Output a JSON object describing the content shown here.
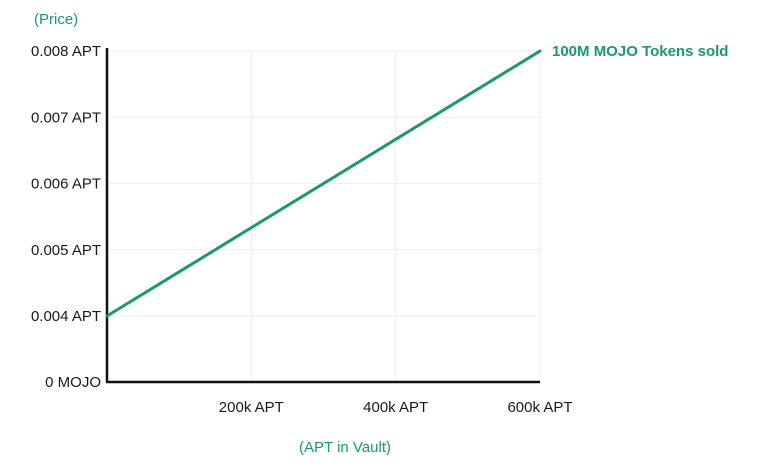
{
  "colors": {
    "accent": "#1a9a6c",
    "axis": "#111111",
    "grid": "#eeeeee",
    "text": "#1a1a1a"
  },
  "chart_data": {
    "type": "line",
    "ylabel": "(Price)",
    "xlabel": "(APT in Vault)",
    "y_ticks": [
      {
        "value": 0.008,
        "label": "0.008 APT"
      },
      {
        "value": 0.007,
        "label": "0.007 APT"
      },
      {
        "value": 0.006,
        "label": "0.006 APT"
      },
      {
        "value": 0.005,
        "label": "0.005 APT"
      },
      {
        "value": 0.004,
        "label": "0.004 APT"
      },
      {
        "value": 0,
        "label": "0 MOJO"
      }
    ],
    "x_ticks": [
      {
        "value": 200000,
        "label": "200k APT"
      },
      {
        "value": 400000,
        "label": "400k APT"
      },
      {
        "value": 600000,
        "label": "600k APT"
      }
    ],
    "xlim": [
      0,
      600000
    ],
    "ylim": [
      0,
      0.008
    ],
    "grid": true,
    "series": [
      {
        "points": [
          {
            "x": 0,
            "y": 0.004
          },
          {
            "x": 600000,
            "y": 0.008
          }
        ]
      }
    ],
    "annotations": [
      {
        "text": "100M MOJO Tokens sold",
        "x": 600000,
        "y": 0.008
      }
    ]
  }
}
